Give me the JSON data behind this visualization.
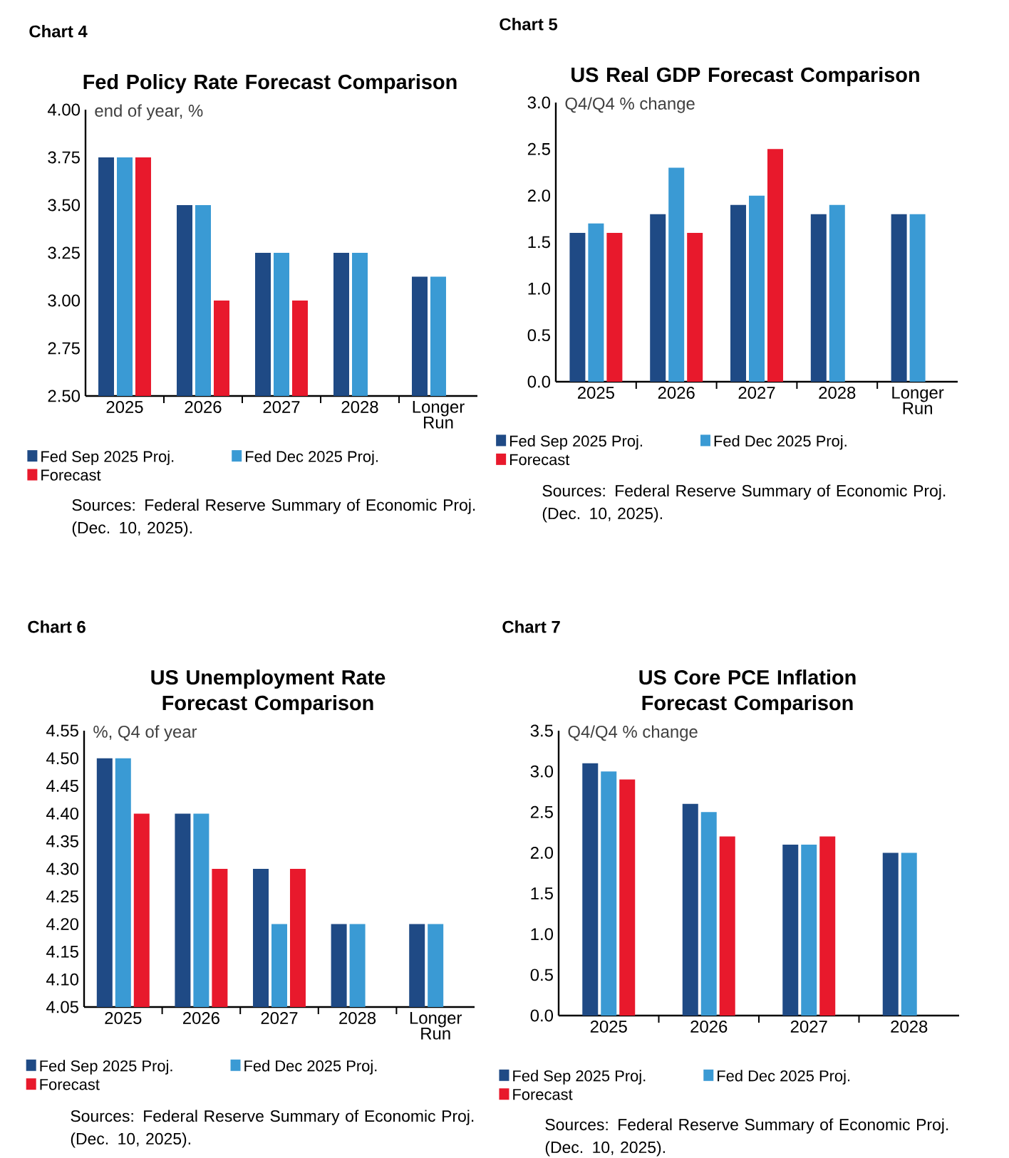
{
  "chart_data": [
    {
      "type": "bar",
      "title": "Fed Policy Rate Forecast Comparison",
      "ylabel": "end of year, %",
      "categories": [
        "2025",
        "2026",
        "2027",
        "2028",
        "Longer Run"
      ],
      "ylim": [
        2.5,
        4.0
      ],
      "yticks": [
        {
          "value": 2.5,
          "label": "2.50"
        },
        {
          "value": 2.75,
          "label": "2.75"
        },
        {
          "value": 3.0,
          "label": "3.00"
        },
        {
          "value": 3.25,
          "label": "3.25"
        },
        {
          "value": 3.5,
          "label": "3.50"
        },
        {
          "value": 3.75,
          "label": "3.75"
        },
        {
          "value": 4.0,
          "label": "4.00"
        }
      ],
      "legend": "bottom",
      "series": [
        {
          "name": "Fed Sep 2025 Proj.",
          "color": "#1f4a85",
          "values": [
            3.75,
            3.5,
            3.25,
            3.25,
            3.125
          ]
        },
        {
          "name": "Fed Dec 2025 Proj.",
          "color": "#3a9ad4",
          "values": [
            3.75,
            3.5,
            3.25,
            3.25,
            3.125
          ]
        },
        {
          "name": "Forecast",
          "color": "#e8192c",
          "values": [
            3.75,
            3.0,
            3.0,
            null,
            null
          ]
        }
      ],
      "annotations": [
        "Chart 4",
        "Sources: Federal Reserve Summary of Economic Proj. (Dec. 10, 2025)."
      ]
    },
    {
      "type": "bar",
      "title": "US Real GDP Forecast Comparison",
      "ylabel": "Q4/Q4 % change",
      "categories": [
        "2025",
        "2026",
        "2027",
        "2028",
        "Longer Run"
      ],
      "ylim": [
        0,
        3.0
      ],
      "yticks": [
        {
          "value": 0,
          "label": "0.0"
        },
        {
          "value": 0.5,
          "label": "0.5"
        },
        {
          "value": 1.0,
          "label": "1.0"
        },
        {
          "value": 1.5,
          "label": "1.5"
        },
        {
          "value": 2.0,
          "label": "2.0"
        },
        {
          "value": 2.5,
          "label": "2.5"
        },
        {
          "value": 3.0,
          "label": "3.0"
        }
      ],
      "legend": "bottom",
      "series": [
        {
          "name": "Fed Sep 2025 Proj.",
          "color": "#1f4a85",
          "values": [
            1.6,
            1.8,
            1.9,
            1.8,
            1.8
          ]
        },
        {
          "name": "Fed Dec 2025 Proj.",
          "color": "#3a9ad4",
          "values": [
            1.7,
            2.3,
            2.0,
            1.9,
            1.8
          ]
        },
        {
          "name": "Forecast",
          "color": "#e8192c",
          "values": [
            1.6,
            1.6,
            2.5,
            null,
            null
          ]
        }
      ],
      "annotations": [
        "Chart 5",
        "Sources: Federal Reserve Summary of Economic Proj. (Dec. 10, 2025)."
      ]
    },
    {
      "type": "bar",
      "title": "US Unemployment Rate Forecast Comparison",
      "ylabel": "%, Q4 of year",
      "categories": [
        "2025",
        "2026",
        "2027",
        "2028",
        "Longer Run"
      ],
      "ylim": [
        4.05,
        4.55
      ],
      "yticks": [
        {
          "value": 4.05,
          "label": "4.05"
        },
        {
          "value": 4.1,
          "label": "4.10"
        },
        {
          "value": 4.15,
          "label": "4.15"
        },
        {
          "value": 4.2,
          "label": "4.20"
        },
        {
          "value": 4.25,
          "label": "4.25"
        },
        {
          "value": 4.3,
          "label": "4.30"
        },
        {
          "value": 4.35,
          "label": "4.35"
        },
        {
          "value": 4.4,
          "label": "4.40"
        },
        {
          "value": 4.45,
          "label": "4.45"
        },
        {
          "value": 4.5,
          "label": "4.50"
        },
        {
          "value": 4.55,
          "label": "4.55"
        }
      ],
      "legend": "bottom",
      "series": [
        {
          "name": "Fed Sep 2025 Proj.",
          "color": "#1f4a85",
          "values": [
            4.5,
            4.4,
            4.3,
            4.2,
            4.2
          ]
        },
        {
          "name": "Fed Dec 2025 Proj.",
          "color": "#3a9ad4",
          "values": [
            4.5,
            4.4,
            4.2,
            4.2,
            4.2
          ]
        },
        {
          "name": "Forecast",
          "color": "#e8192c",
          "values": [
            4.4,
            4.3,
            4.3,
            null,
            null
          ]
        }
      ],
      "annotations": [
        "Chart 6",
        "Sources: Federal Reserve Summary of Economic Proj. (Dec. 10, 2025)."
      ]
    },
    {
      "type": "bar",
      "title": "US Core PCE Inflation Forecast Comparison",
      "ylabel": "Q4/Q4 % change",
      "categories": [
        "2025",
        "2026",
        "2027",
        "2028"
      ],
      "ylim": [
        0,
        3.5
      ],
      "yticks": [
        {
          "value": 0,
          "label": "0.0"
        },
        {
          "value": 0.5,
          "label": "0.5"
        },
        {
          "value": 1.0,
          "label": "1.0"
        },
        {
          "value": 1.5,
          "label": "1.5"
        },
        {
          "value": 2.0,
          "label": "2.0"
        },
        {
          "value": 2.5,
          "label": "2.5"
        },
        {
          "value": 3.0,
          "label": "3.0"
        },
        {
          "value": 3.5,
          "label": "3.5"
        }
      ],
      "legend": "bottom",
      "series": [
        {
          "name": "Fed Sep 2025 Proj.",
          "color": "#1f4a85",
          "values": [
            3.1,
            2.6,
            2.1,
            2.0
          ]
        },
        {
          "name": "Fed Dec 2025 Proj.",
          "color": "#3a9ad4",
          "values": [
            3.0,
            2.5,
            2.1,
            2.0
          ]
        },
        {
          "name": "Forecast",
          "color": "#e8192c",
          "values": [
            2.9,
            2.2,
            2.2,
            null
          ]
        }
      ],
      "annotations": [
        "Chart 7",
        "Sources: Federal Reserve Summary of Economic Proj. (Dec. 10, 2025)."
      ]
    }
  ]
}
